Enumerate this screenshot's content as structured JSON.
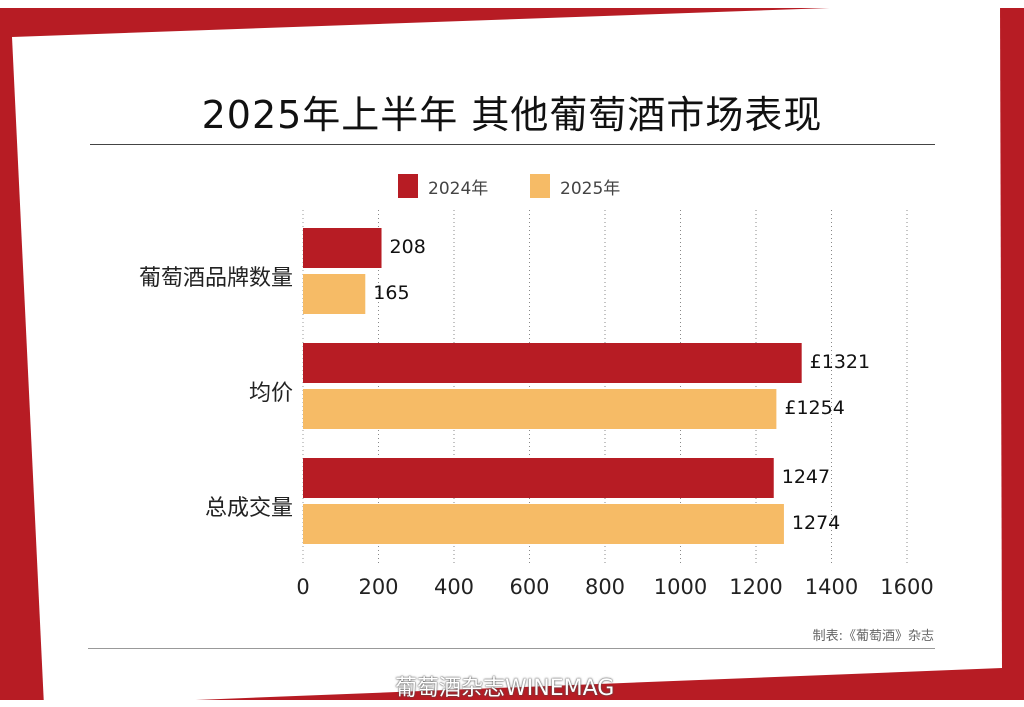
{
  "colors": {
    "frame": "#b71c24",
    "series_2024": "#b71c24",
    "series_2025": "#f6bb66"
  },
  "chart_data": {
    "type": "bar",
    "orientation": "horizontal",
    "title": "2025年上半年 其他葡萄酒市场表现",
    "categories": [
      "葡萄酒品牌数量",
      "均价",
      "总成交量"
    ],
    "series": [
      {
        "name": "2024年",
        "values": [
          208,
          1321,
          1247
        ],
        "labels": [
          "208",
          "£1321",
          "1247"
        ]
      },
      {
        "name": "2025年",
        "values": [
          165,
          1254,
          1274
        ],
        "labels": [
          "165",
          "£1254",
          "1274"
        ]
      }
    ],
    "xlim": [
      0,
      1600
    ],
    "xticks": [
      "0",
      "200",
      "400",
      "600",
      "800",
      "1000",
      "1200",
      "1400",
      "1600"
    ],
    "grid": "vertical dotted",
    "legend": "top-center"
  },
  "credit": "制表:《葡萄酒》杂志",
  "watermark": "葡萄酒杂志WINEMAG"
}
